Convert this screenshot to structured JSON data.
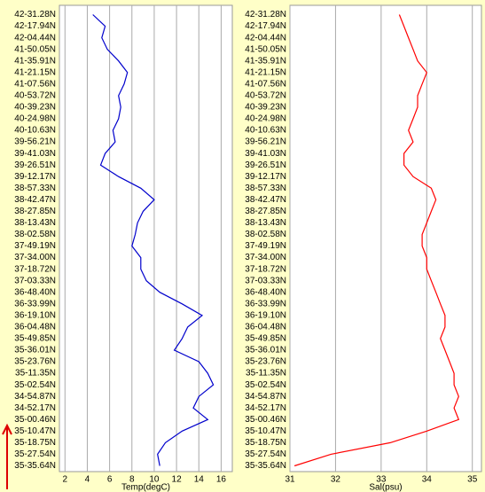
{
  "chart_data": [
    {
      "type": "line",
      "orientation": "horizontal",
      "xlabel": "Temp(degC)",
      "color": "#0000cc",
      "categories": [
        "42-31.28N",
        "42-17.94N",
        "42-04.44N",
        "41-50.05N",
        "41-35.91N",
        "41-21.15N",
        "41-07.56N",
        "40-53.72N",
        "40-39.23N",
        "40-24.98N",
        "40-10.63N",
        "39-56.21N",
        "39-41.03N",
        "39-26.51N",
        "39-12.17N",
        "38-57.33N",
        "38-42.47N",
        "38-27.85N",
        "38-13.43N",
        "38-02.58N",
        "37-49.19N",
        "37-34.00N",
        "37-18.72N",
        "37-03.33N",
        "36-48.40N",
        "36-33.99N",
        "36-19.10N",
        "36-04.48N",
        "35-49.85N",
        "35-36.01N",
        "35-23.76N",
        "35-11.35N",
        "35-02.54N",
        "34-54.87N",
        "34-52.17N",
        "35-00.46N",
        "35-10.47N",
        "35-18.75N",
        "35-27.54N",
        "35-35.64N"
      ],
      "values": [
        4.5,
        5.6,
        5.3,
        5.8,
        6.8,
        7.6,
        7.3,
        6.8,
        7.0,
        6.8,
        6.3,
        6.5,
        5.6,
        5.2,
        6.8,
        8.8,
        10.0,
        9.0,
        8.5,
        8.3,
        8.0,
        8.8,
        8.8,
        9.3,
        10.5,
        12.5,
        14.3,
        13.0,
        12.5,
        11.8,
        14.0,
        14.8,
        15.3,
        14.0,
        13.5,
        14.8,
        12.5,
        11.0,
        10.3,
        10.5
      ],
      "xlim": [
        1.5,
        17
      ],
      "xticks": [
        2,
        4,
        6,
        8,
        10,
        12,
        14,
        16
      ],
      "grid": true
    },
    {
      "type": "line",
      "orientation": "horizontal",
      "xlabel": "Sal(psu)",
      "color": "#ff0000",
      "categories": [
        "42-31.28N",
        "42-17.94N",
        "42-04.44N",
        "41-50.05N",
        "41-35.91N",
        "41-21.15N",
        "41-07.56N",
        "40-53.72N",
        "40-39.23N",
        "40-24.98N",
        "40-10.63N",
        "39-56.21N",
        "39-41.03N",
        "39-26.51N",
        "39-12.17N",
        "38-57.33N",
        "38-42.47N",
        "38-27.85N",
        "38-13.43N",
        "38-02.58N",
        "37-49.19N",
        "37-34.00N",
        "37-18.72N",
        "37-03.33N",
        "36-48.40N",
        "36-33.99N",
        "36-19.10N",
        "36-04.48N",
        "35-49.85N",
        "35-36.01N",
        "35-23.76N",
        "35-11.35N",
        "35-02.54N",
        "34-54.87N",
        "34-52.17N",
        "35-00.46N",
        "35-10.47N",
        "35-18.75N",
        "35-27.54N",
        "35-35.64N"
      ],
      "values": [
        33.4,
        33.5,
        33.6,
        33.7,
        33.8,
        34.0,
        33.9,
        33.8,
        33.8,
        33.7,
        33.6,
        33.7,
        33.5,
        33.5,
        33.7,
        34.1,
        34.2,
        34.1,
        34.0,
        33.9,
        33.9,
        34.0,
        34.0,
        34.1,
        34.2,
        34.3,
        34.4,
        34.4,
        34.3,
        34.4,
        34.5,
        34.6,
        34.6,
        34.7,
        34.6,
        34.7,
        34.0,
        33.2,
        31.9,
        31.1
      ],
      "xlim": [
        31,
        35.2
      ],
      "xticks": [
        31,
        32,
        33,
        34,
        35
      ],
      "grid": true
    }
  ]
}
